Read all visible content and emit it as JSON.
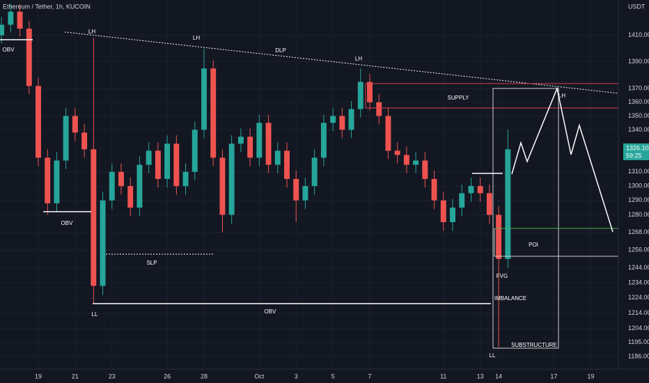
{
  "chart_data": {
    "type": "candlestick",
    "title": "Ethereum / Tether, 1h, KUCOIN",
    "y_axis_label": "USDT",
    "last_price": "1326.10",
    "countdown": "59:25",
    "x": [
      -2,
      -1.5,
      -1,
      -0.5,
      0,
      0.5,
      1,
      1.5,
      2,
      2.5,
      3,
      3.5,
      4,
      4.5,
      5,
      5.5,
      6,
      6.5,
      7,
      7.5,
      8,
      8.5,
      9,
      9.5,
      10,
      10.5,
      11,
      11.5,
      12,
      12.5,
      13,
      13.5,
      14,
      14.5,
      15,
      15.5,
      16,
      16.5,
      17,
      17.5,
      18,
      18.5,
      19,
      19.5,
      20,
      20.5,
      21,
      21.5,
      22,
      22.5,
      23,
      23.5,
      24,
      24.5,
      25,
      25.5
    ],
    "open": [
      1410,
      1418,
      1428,
      1415,
      1372,
      1320,
      1288,
      1318,
      1350,
      1338,
      1326,
      1232,
      1290,
      1310,
      1300,
      1285,
      1315,
      1325,
      1305,
      1330,
      1300,
      1310,
      1340,
      1385,
      1320,
      1280,
      1330,
      1335,
      1320,
      1345,
      1315,
      1325,
      1305,
      1290,
      1300,
      1320,
      1345,
      1350,
      1340,
      1355,
      1375,
      1360,
      1350,
      1325,
      1322,
      1315,
      1318,
      1305,
      1290,
      1275,
      1285,
      1295,
      1300,
      1295,
      1280,
      1250
    ],
    "high": [
      1424,
      1434,
      1434,
      1421,
      1378,
      1326,
      1324,
      1356,
      1356,
      1344,
      1408,
      1296,
      1316,
      1316,
      1306,
      1321,
      1331,
      1331,
      1336,
      1336,
      1316,
      1346,
      1400,
      1391,
      1326,
      1336,
      1341,
      1341,
      1351,
      1351,
      1331,
      1331,
      1311,
      1306,
      1326,
      1351,
      1356,
      1356,
      1361,
      1385,
      1381,
      1366,
      1356,
      1331,
      1328,
      1324,
      1324,
      1311,
      1296,
      1291,
      1301,
      1306,
      1306,
      1301,
      1286,
      1340
    ],
    "low": [
      1404,
      1412,
      1409,
      1366,
      1314,
      1280,
      1282,
      1312,
      1332,
      1320,
      1220,
      1226,
      1284,
      1294,
      1279,
      1279,
      1309,
      1299,
      1299,
      1294,
      1294,
      1304,
      1334,
      1314,
      1268,
      1274,
      1324,
      1314,
      1314,
      1309,
      1309,
      1299,
      1275,
      1284,
      1294,
      1314,
      1339,
      1334,
      1334,
      1349,
      1354,
      1344,
      1319,
      1316,
      1309,
      1309,
      1299,
      1284,
      1269,
      1269,
      1279,
      1289,
      1289,
      1274,
      1192,
      1244
    ],
    "close": [
      1418,
      1428,
      1415,
      1372,
      1320,
      1288,
      1318,
      1350,
      1338,
      1326,
      1232,
      1290,
      1310,
      1300,
      1285,
      1315,
      1325,
      1305,
      1330,
      1300,
      1310,
      1340,
      1385,
      1320,
      1280,
      1330,
      1335,
      1320,
      1345,
      1315,
      1325,
      1305,
      1290,
      1300,
      1320,
      1345,
      1350,
      1340,
      1355,
      1375,
      1360,
      1350,
      1325,
      1322,
      1315,
      1318,
      1305,
      1290,
      1275,
      1285,
      1295,
      1300,
      1295,
      1280,
      1250,
      1326
    ],
    "up_color": "#26a69a",
    "down_color": "#ef5350",
    "xlim": [
      -2.08,
      31.5
    ],
    "xticks": [
      {
        "value": 0,
        "label": "19"
      },
      {
        "value": 2,
        "label": "21"
      },
      {
        "value": 4,
        "label": "23"
      },
      {
        "value": 7,
        "label": "26"
      },
      {
        "value": 9,
        "label": "28"
      },
      {
        "value": 12,
        "label": "Oct"
      },
      {
        "value": 14,
        "label": "3"
      },
      {
        "value": 16,
        "label": "5"
      },
      {
        "value": 18,
        "label": "7"
      },
      {
        "value": 22,
        "label": "11"
      },
      {
        "value": 24,
        "label": "13"
      },
      {
        "value": 25,
        "label": "14"
      },
      {
        "value": 28,
        "label": "17"
      },
      {
        "value": 30,
        "label": "19"
      }
    ],
    "ylim": [
      1178,
      1437
    ],
    "log_scale": true,
    "yticks": [
      {
        "value": 1410,
        "label": "1410.00"
      },
      {
        "value": 1390,
        "label": "1390.00"
      },
      {
        "value": 1370,
        "label": "1370.00"
      },
      {
        "value": 1360,
        "label": "1360.00"
      },
      {
        "value": 1350,
        "label": "1350.00"
      },
      {
        "value": 1340,
        "label": "1340.00"
      },
      {
        "value": 1310,
        "label": "1310.00"
      },
      {
        "value": 1300,
        "label": "1300.00"
      },
      {
        "value": 1290,
        "label": "1290.00"
      },
      {
        "value": 1280,
        "label": "1280.00"
      },
      {
        "value": 1268,
        "label": "1268.00"
      },
      {
        "value": 1256,
        "label": "1256.00"
      },
      {
        "value": 1244,
        "label": "1244.00"
      },
      {
        "value": 1234,
        "label": "1234.00"
      },
      {
        "value": 1224,
        "label": "1224.00"
      },
      {
        "value": 1214,
        "label": "1214.00"
      },
      {
        "value": 1204,
        "label": "1204.00"
      },
      {
        "value": 1195,
        "label": "1195.00"
      },
      {
        "value": 1186,
        "label": "1186.00"
      }
    ],
    "grid": true,
    "annotations": [
      "OBV",
      "OBV",
      "OBV",
      "LH",
      "LH",
      "LH",
      "LH",
      "DLP",
      "SLP",
      "LL",
      "LL",
      "SUPPLY",
      "POI",
      "FVG",
      "IMBALANCE",
      "SUBSTRUCTURE"
    ]
  }
}
